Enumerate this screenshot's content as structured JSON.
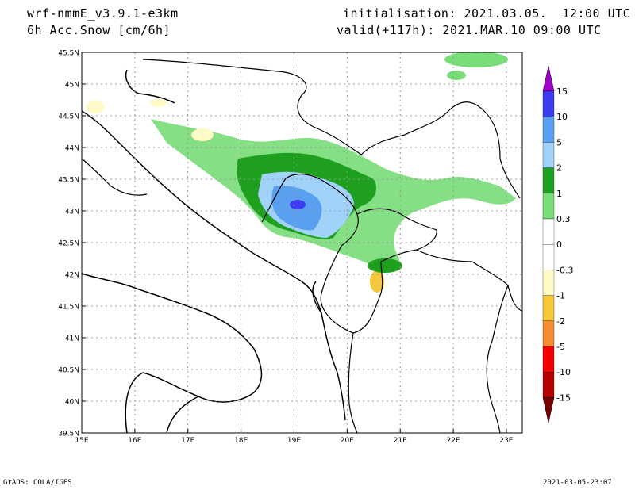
{
  "header": {
    "model": "wrf-nmmE_v3.9.1-e3km",
    "variable": "6h Acc.Snow [cm/6h]",
    "init": "initialisation: 2021.03.05.  12:00 UTC",
    "valid": "valid(+117h): 2021.MAR.10 09:00 UTC"
  },
  "axes": {
    "lat_ticks": [
      "45.5N",
      "45N",
      "44.5N",
      "44N",
      "43.5N",
      "43N",
      "42.5N",
      "42N",
      "41.5N",
      "41N",
      "40.5N",
      "40N",
      "39.5N"
    ],
    "lon_ticks": [
      "15E",
      "16E",
      "17E",
      "18E",
      "19E",
      "20E",
      "21E",
      "22E",
      "23E"
    ]
  },
  "map_extent": {
    "lon": [
      15,
      23.3
    ],
    "lat": [
      39.5,
      45.5
    ]
  },
  "colorbar": {
    "labels": [
      "15",
      "10",
      "5",
      "2",
      "1",
      "0.3",
      "0",
      "-0.3",
      "-1",
      "-2",
      "-5",
      "-10",
      "-15"
    ],
    "colors": [
      "#3c3cf0",
      "#5aa0f0",
      "#a0d2fa",
      "#1ea01e",
      "#78dc78",
      "#ffffff",
      "#ffffff",
      "#fffac8",
      "#f5c83c",
      "#f58c32",
      "#f00000",
      "#b40000"
    ],
    "top_arrow_color": "#a000c8",
    "bottom_arrow_color": "#780000"
  },
  "footer": {
    "left": "GrADS: COLA/IGES",
    "right": "2021-03-05-23:07"
  }
}
